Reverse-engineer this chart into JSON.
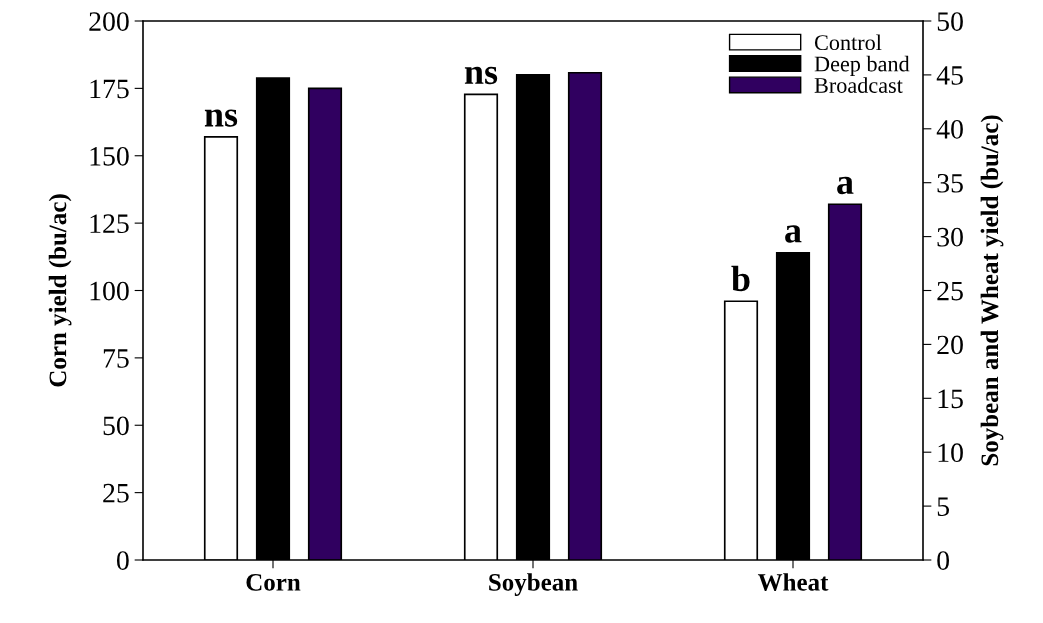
{
  "chart_data": {
    "type": "bar",
    "xlabel": null,
    "ylabel": "Corn yield (bu/ac)",
    "y2label": "Soybean and Wheat yield (bu/ac)",
    "categories": [
      "Corn",
      "Soybean",
      "Wheat"
    ],
    "series": [
      {
        "name": "Control",
        "color": "#ffffff",
        "values": [
          157,
          null,
          null
        ]
      },
      {
        "name": "Deep band",
        "color": "#000000",
        "values": [
          178.8,
          null,
          null
        ]
      },
      {
        "name": "Broadcast",
        "color": "#300060",
        "values": [
          175,
          null,
          null
        ]
      },
      {
        "color": "#ffffff",
        "axis": "y2",
        "values": [
          null,
          43.2,
          24.0
        ]
      },
      {
        "color": "#000000",
        "axis": "y2",
        "values": [
          null,
          45.0,
          28.5
        ]
      },
      {
        "color": "#300060",
        "axis": "y2",
        "values": [
          null,
          45.2,
          33.0
        ]
      }
    ],
    "ylim": [
      0,
      200
    ],
    "yticks": [
      0,
      25,
      50,
      75,
      100,
      125,
      150,
      175,
      200
    ],
    "y2lim": [
      0,
      50
    ],
    "y2ticks": [
      0,
      5,
      10,
      15,
      20,
      25,
      30,
      35,
      40,
      45,
      50
    ],
    "annotations": [
      "ns",
      "ns",
      "b",
      "a",
      "a"
    ],
    "legend": "top right",
    "grid": false
  }
}
